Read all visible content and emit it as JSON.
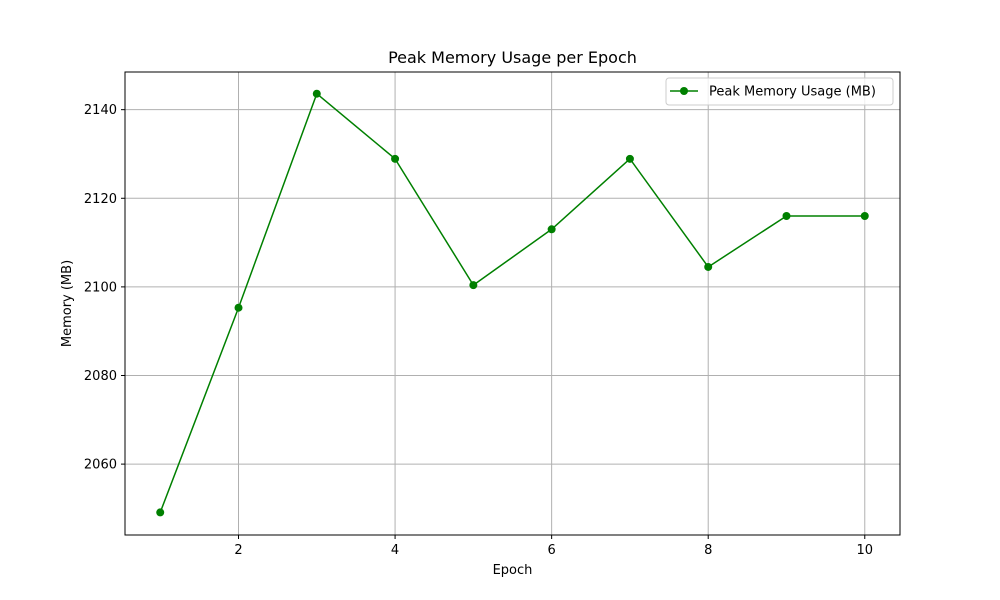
{
  "chart_data": {
    "type": "line",
    "title": "Peak Memory Usage per Epoch",
    "xlabel": "Epoch",
    "ylabel": "Memory (MB)",
    "xlim": [
      0.55,
      10.45
    ],
    "ylim": [
      2044,
      2148.5
    ],
    "x_ticks": [
      2,
      4,
      6,
      8,
      10
    ],
    "y_ticks": [
      2060,
      2080,
      2100,
      2120,
      2140
    ],
    "grid": true,
    "legend_position": "top-right",
    "series": [
      {
        "name": "Peak Memory Usage (MB)",
        "color": "#008000",
        "marker": "circle",
        "x": [
          1,
          2,
          3,
          4,
          5,
          6,
          7,
          8,
          9,
          10
        ],
        "y": [
          2049.1,
          2095.3,
          2143.6,
          2128.9,
          2100.4,
          2113.0,
          2128.9,
          2104.5,
          2116.0,
          2116.0
        ]
      }
    ]
  }
}
